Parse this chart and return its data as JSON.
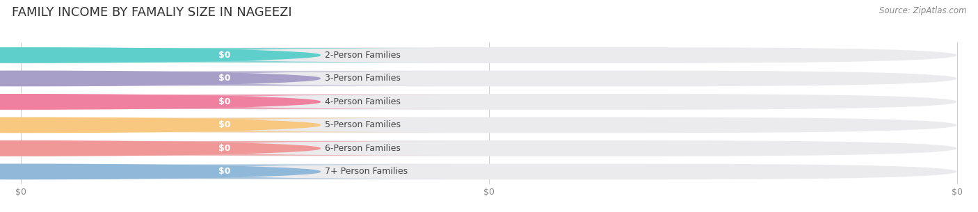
{
  "title": "FAMILY INCOME BY FAMALIY SIZE IN NAGEEZI",
  "source": "Source: ZipAtlas.com",
  "categories": [
    "2-Person Families",
    "3-Person Families",
    "4-Person Families",
    "5-Person Families",
    "6-Person Families",
    "7+ Person Families"
  ],
  "values": [
    0,
    0,
    0,
    0,
    0,
    0
  ],
  "bar_colors": [
    "#5ecfca",
    "#a89fc8",
    "#f080a0",
    "#f8c880",
    "#f09898",
    "#90b8d8"
  ],
  "background_color": "#ffffff",
  "bar_bg_color": "#ebebee",
  "title_fontsize": 13,
  "source_fontsize": 8.5,
  "label_fontsize": 9,
  "value_fontsize": 9,
  "xtick_labels": [
    "$0",
    "$0",
    "$0"
  ],
  "xtick_positions": [
    0,
    0.5,
    1.0
  ]
}
